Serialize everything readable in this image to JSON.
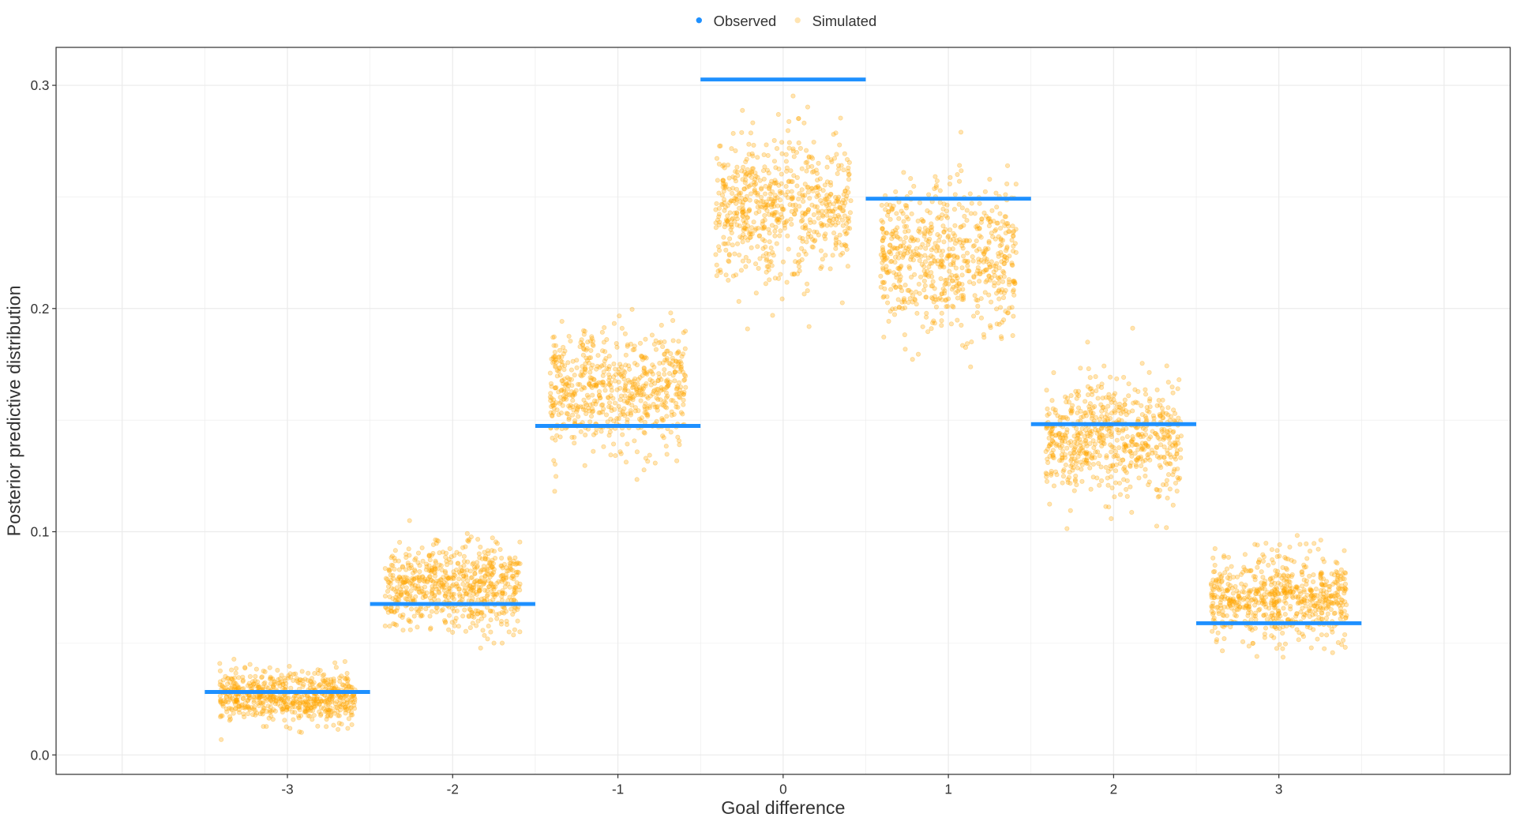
{
  "chart_data": {
    "type": "scatter",
    "xlabel": "Goal difference",
    "ylabel": "Posterior predictive distribution",
    "categories": [
      "-3",
      "-2",
      "-1",
      "0",
      "1",
      "2",
      "3"
    ],
    "x": [
      -3,
      -2,
      -1,
      0,
      1,
      2,
      3
    ],
    "xlim": [
      -4.4,
      4.4
    ],
    "ylim": [
      -0.0087,
      0.317
    ],
    "yticks": [
      "0.0",
      "0.1",
      "0.2",
      "0.3"
    ],
    "ytick_values": [
      0.0,
      0.1,
      0.2,
      0.3
    ],
    "grid": true,
    "legend_placement": "top",
    "series": [
      {
        "name": "Observed",
        "color": "#1e90ff",
        "mark": "horizontal segment",
        "values": [
          0.0282,
          0.0676,
          0.1474,
          0.3026,
          0.2492,
          0.1482,
          0.059
        ]
      },
      {
        "name": "Simulated",
        "color": "#ffa500",
        "mark": "jittered points",
        "means": [
          0.026,
          0.075,
          0.163,
          0.245,
          0.222,
          0.142,
          0.07
        ],
        "sds": [
          0.0055,
          0.0095,
          0.0135,
          0.016,
          0.016,
          0.013,
          0.0095
        ]
      }
    ]
  }
}
